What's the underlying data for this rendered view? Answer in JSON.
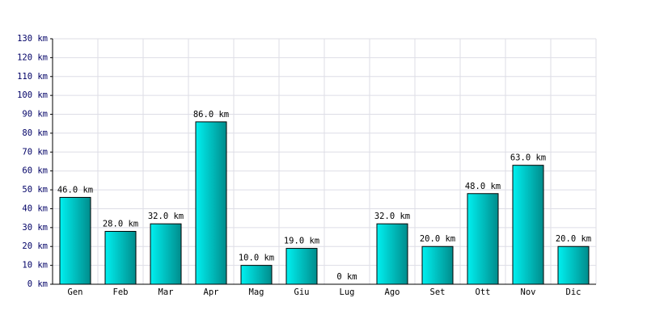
{
  "chart_data": {
    "type": "bar",
    "categories": [
      "Gen",
      "Feb",
      "Mar",
      "Apr",
      "Mag",
      "Giu",
      "Lug",
      "Ago",
      "Set",
      "Ott",
      "Nov",
      "Dic"
    ],
    "values": [
      46,
      28,
      32,
      86,
      10,
      19,
      0,
      32,
      20,
      48,
      63,
      20
    ],
    "value_labels": [
      "46.0 km",
      "28.0 km",
      "32.0 km",
      "86.0 km",
      "10.0 km",
      "19.0 km",
      "0 km",
      "32.0 km",
      "20.0 km",
      "48.0 km",
      "63.0 km",
      "20.0 km"
    ],
    "color": "#00c8c8",
    "ylim": [
      0,
      130
    ],
    "yticks": [
      {
        "value": 0,
        "label": "0 km"
      },
      {
        "value": 10,
        "label": "10 km"
      },
      {
        "value": 20,
        "label": "20 km"
      },
      {
        "value": 30,
        "label": "30 km"
      },
      {
        "value": 40,
        "label": "40 km"
      },
      {
        "value": 50,
        "label": "50 km"
      },
      {
        "value": 60,
        "label": "60 km"
      },
      {
        "value": 70,
        "label": "70 km"
      },
      {
        "value": 80,
        "label": "80 km"
      },
      {
        "value": 90,
        "label": "90 km"
      },
      {
        "value": 100,
        "label": "100 km"
      },
      {
        "value": 110,
        "label": "110 km"
      },
      {
        "value": 120,
        "label": "120 km"
      },
      {
        "value": 130,
        "label": "130 km"
      }
    ],
    "grid": true
  }
}
